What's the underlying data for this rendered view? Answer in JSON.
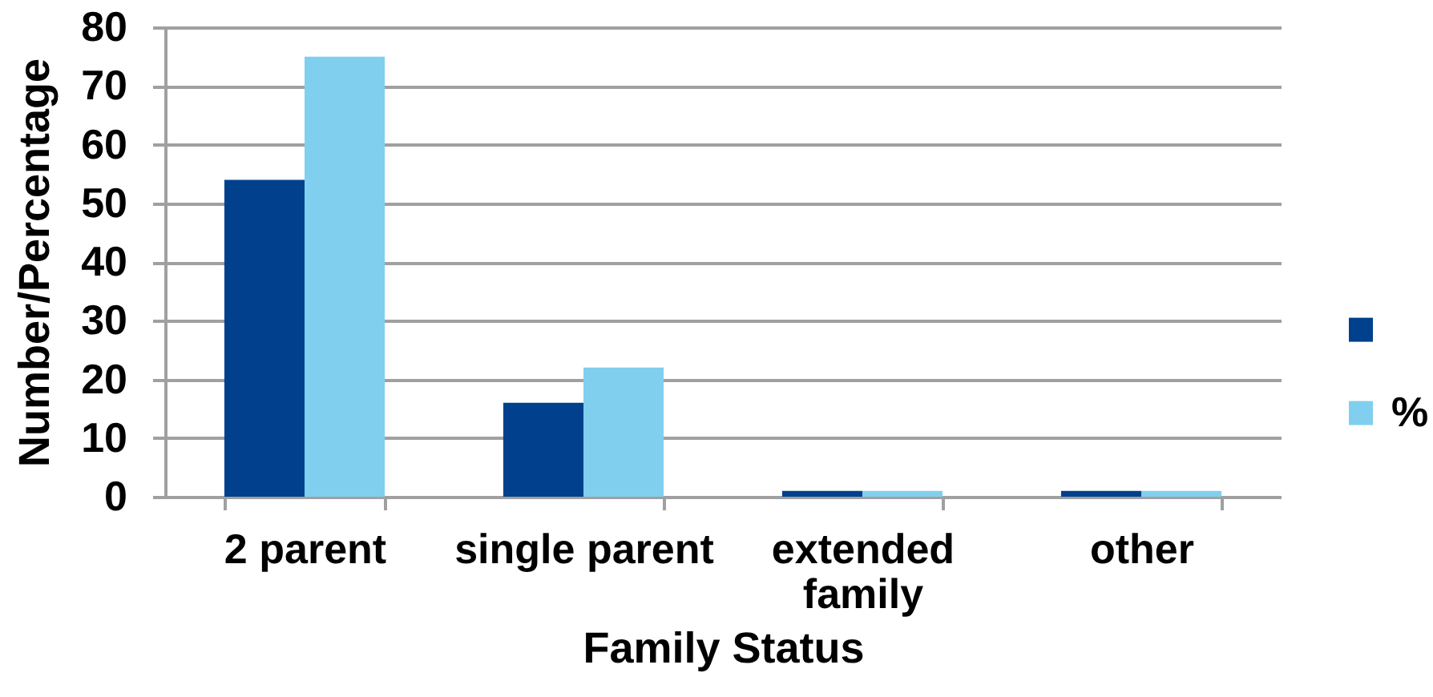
{
  "chart_data": {
    "type": "bar",
    "xlabel": "Family Status",
    "ylabel": "Number/Percentage",
    "categories": [
      "2 parent",
      "single parent",
      "extended family",
      "other"
    ],
    "series": [
      {
        "color": "#00408c",
        "values": [
          54,
          16,
          1,
          1
        ]
      },
      {
        "name": "%",
        "color": "#80cfee",
        "values": [
          75,
          22,
          1,
          1
        ]
      }
    ],
    "ylim": [
      0,
      80
    ],
    "yticks": [
      0,
      10,
      20,
      30,
      40,
      50,
      60,
      70,
      80
    ],
    "grid": "y",
    "legend": "right"
  }
}
